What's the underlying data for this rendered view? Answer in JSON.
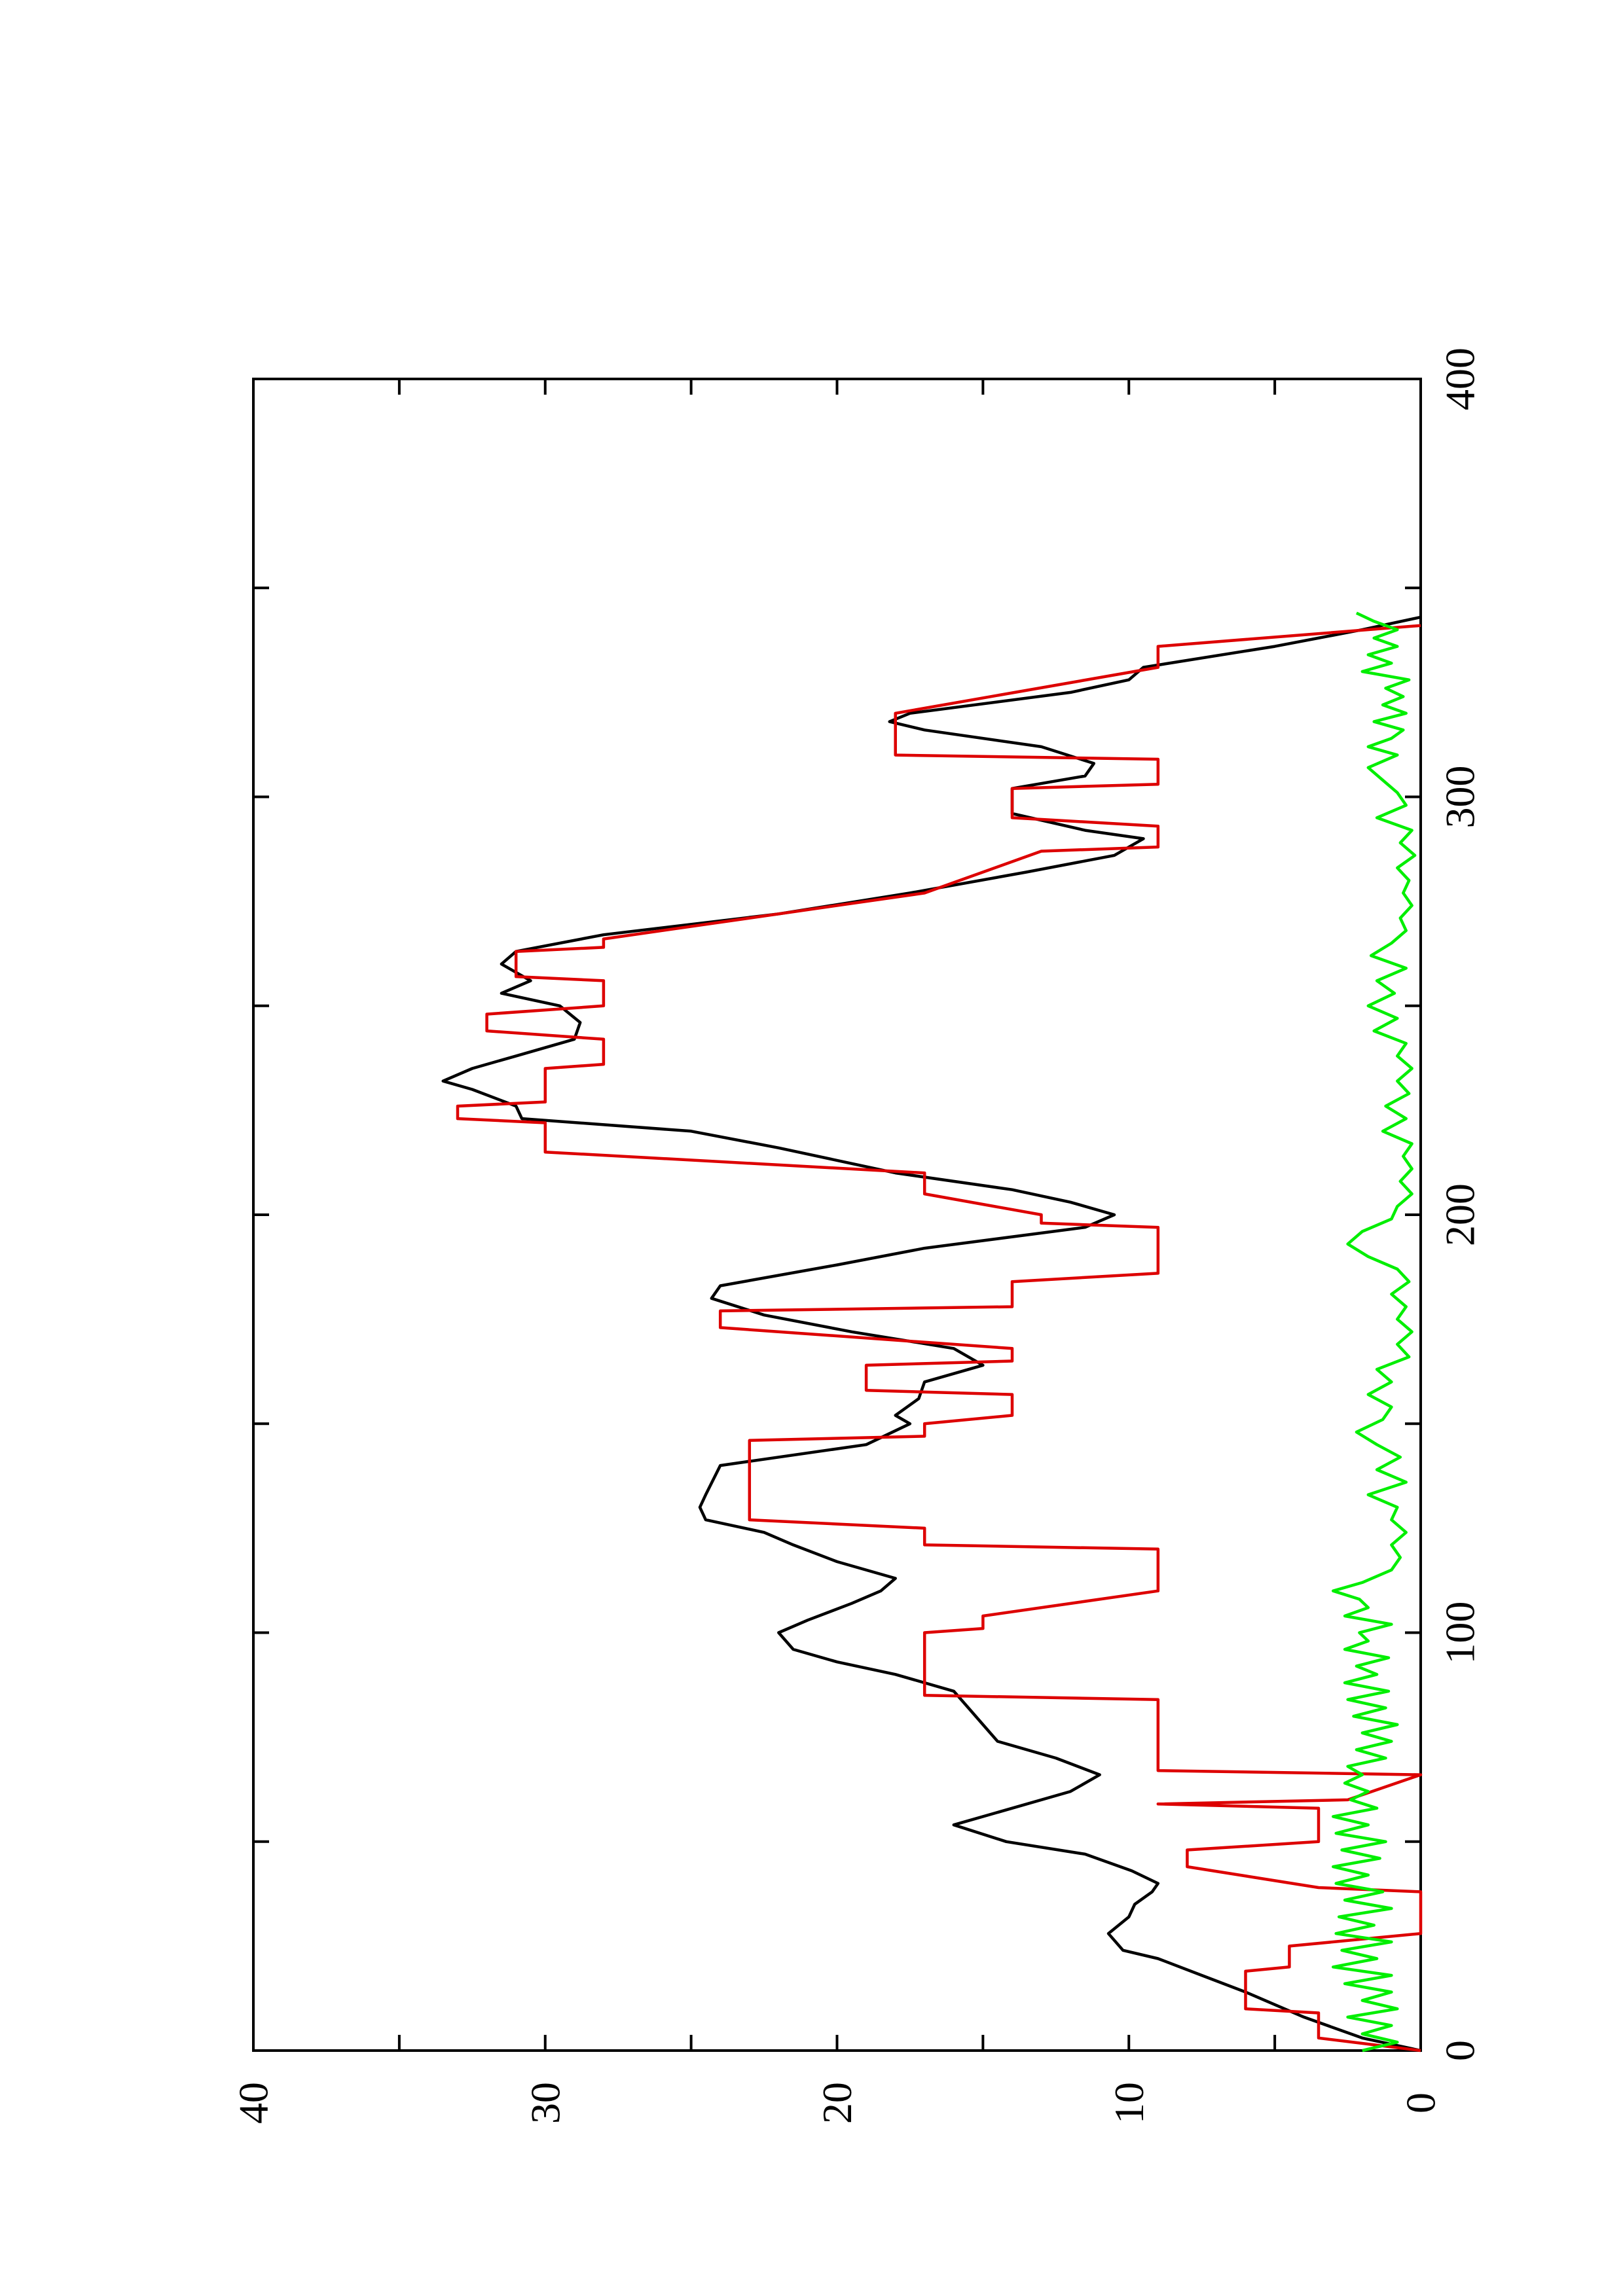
{
  "chart_data": {
    "type": "line",
    "orientation": "rotated-90-counterclockwise",
    "title": "",
    "xlabel": "",
    "ylabel": "",
    "xlim": [
      0,
      400
    ],
    "ylim": [
      0,
      40
    ],
    "x_ticks": [
      0,
      100,
      200,
      300,
      400
    ],
    "y_ticks": [
      0,
      10,
      20,
      30,
      40
    ],
    "x_tick_labels": [
      "0",
      "100",
      "200",
      "300",
      "400"
    ],
    "y_tick_labels": [
      "0",
      "10",
      "20",
      "30",
      "40"
    ],
    "x_minor_ticks": [
      50,
      150,
      250,
      350
    ],
    "y_minor_ticks": [
      5,
      15,
      25,
      35
    ],
    "grid": false,
    "legend": "none",
    "series": [
      {
        "color": "#000000",
        "points": [
          [
            0,
            0
          ],
          [
            3,
            2
          ],
          [
            8,
            4
          ],
          [
            11,
            5
          ],
          [
            14,
            6
          ],
          [
            18,
            7.5
          ],
          [
            22,
            9
          ],
          [
            24,
            10.2
          ],
          [
            28,
            10.7
          ],
          [
            32,
            10
          ],
          [
            35,
            9.8
          ],
          [
            38,
            9.2
          ],
          [
            40,
            9
          ],
          [
            43,
            9.9
          ],
          [
            47,
            11.5
          ],
          [
            50,
            14.2
          ],
          [
            54,
            16
          ],
          [
            58,
            14
          ],
          [
            62,
            12
          ],
          [
            66,
            11
          ],
          [
            70,
            12.5
          ],
          [
            74,
            14.5
          ],
          [
            78,
            15
          ],
          [
            82,
            15.5
          ],
          [
            86,
            16
          ],
          [
            90,
            18
          ],
          [
            93,
            20
          ],
          [
            96,
            21.5
          ],
          [
            100,
            22
          ],
          [
            103,
            21
          ],
          [
            107,
            19.5
          ],
          [
            110,
            18.5
          ],
          [
            113,
            18
          ],
          [
            117,
            20
          ],
          [
            121,
            21.5
          ],
          [
            124,
            22.5
          ],
          [
            127,
            24.5
          ],
          [
            130,
            24.7
          ],
          [
            133,
            24.5
          ],
          [
            140,
            24
          ],
          [
            145,
            19
          ],
          [
            150,
            17.5
          ],
          [
            152,
            18
          ],
          [
            156,
            17.2
          ],
          [
            160,
            17
          ],
          [
            164,
            15
          ],
          [
            168,
            16
          ],
          [
            172,
            19.5
          ],
          [
            176,
            22.5
          ],
          [
            180,
            24.3
          ],
          [
            183,
            24
          ],
          [
            188,
            20
          ],
          [
            192,
            17
          ],
          [
            197,
            11.5
          ],
          [
            200,
            10.5
          ],
          [
            203,
            12
          ],
          [
            206,
            14
          ],
          [
            210,
            18
          ],
          [
            216,
            22
          ],
          [
            220,
            25
          ],
          [
            223,
            30.8
          ],
          [
            226,
            31
          ],
          [
            230,
            32.5
          ],
          [
            232,
            33.5
          ],
          [
            235,
            32.5
          ],
          [
            238,
            31
          ],
          [
            242,
            29
          ],
          [
            246,
            28.8
          ],
          [
            250,
            29.5
          ],
          [
            253,
            31.5
          ],
          [
            256,
            30.5
          ],
          [
            260,
            31.5
          ],
          [
            263,
            31
          ],
          [
            267,
            28
          ],
          [
            272,
            22
          ],
          [
            277,
            17.5
          ],
          [
            282,
            13.5
          ],
          [
            286,
            10.5
          ],
          [
            290,
            9.5
          ],
          [
            292,
            11.5
          ],
          [
            296,
            14
          ],
          [
            302,
            14
          ],
          [
            305,
            11.5
          ],
          [
            308,
            11.2
          ],
          [
            312,
            13
          ],
          [
            316,
            17
          ],
          [
            318,
            18.2
          ],
          [
            320,
            17.5
          ],
          [
            325,
            12
          ],
          [
            328,
            10
          ],
          [
            331,
            9.5
          ],
          [
            336,
            5
          ],
          [
            340,
            2
          ],
          [
            343,
            0
          ]
        ]
      },
      {
        "color": "#dd0000",
        "points": [
          [
            0,
            0
          ],
          [
            3,
            3.5
          ],
          [
            9,
            3.5
          ],
          [
            10,
            6
          ],
          [
            19,
            6
          ],
          [
            20,
            4.5
          ],
          [
            25,
            4.5
          ],
          [
            28,
            0
          ],
          [
            38,
            0
          ],
          [
            39,
            3.5
          ],
          [
            44,
            8
          ],
          [
            48,
            8
          ],
          [
            50,
            3.5
          ],
          [
            58,
            3.5
          ],
          [
            59,
            9
          ],
          [
            60,
            2.5
          ],
          [
            66,
            0
          ],
          [
            67,
            9
          ],
          [
            71,
            9
          ],
          [
            84,
            9
          ],
          [
            85,
            17
          ],
          [
            88,
            17
          ],
          [
            100,
            17
          ],
          [
            101,
            15
          ],
          [
            104,
            15
          ],
          [
            110,
            9
          ],
          [
            120,
            9
          ],
          [
            121,
            17
          ],
          [
            125,
            17
          ],
          [
            127,
            23
          ],
          [
            146,
            23
          ],
          [
            147,
            17
          ],
          [
            150,
            17
          ],
          [
            152,
            14
          ],
          [
            157,
            14
          ],
          [
            158,
            19
          ],
          [
            164,
            19
          ],
          [
            165,
            14
          ],
          [
            168,
            14
          ],
          [
            173,
            24
          ],
          [
            177,
            24
          ],
          [
            178,
            14
          ],
          [
            184,
            14
          ],
          [
            186,
            9
          ],
          [
            197,
            9
          ],
          [
            198,
            13
          ],
          [
            200,
            13
          ],
          [
            205,
            17
          ],
          [
            210,
            17
          ],
          [
            215,
            30
          ],
          [
            222,
            30
          ],
          [
            223,
            33
          ],
          [
            226,
            33
          ],
          [
            227,
            30
          ],
          [
            235,
            30
          ],
          [
            236,
            28
          ],
          [
            242,
            28
          ],
          [
            244,
            32
          ],
          [
            248,
            32
          ],
          [
            250,
            28
          ],
          [
            256,
            28
          ],
          [
            257,
            31
          ],
          [
            263,
            31
          ],
          [
            264,
            28
          ],
          [
            266,
            28
          ],
          [
            277,
            17
          ],
          [
            287,
            13
          ],
          [
            288,
            9
          ],
          [
            293,
            9
          ],
          [
            295,
            14
          ],
          [
            302,
            14
          ],
          [
            303,
            9
          ],
          [
            309,
            9
          ],
          [
            310,
            18
          ],
          [
            320,
            18
          ],
          [
            331,
            9
          ],
          [
            336,
            9
          ],
          [
            341,
            0
          ]
        ]
      },
      {
        "color": "#00ee00",
        "points": [
          [
            0,
            2
          ],
          [
            2,
            0.8
          ],
          [
            4,
            2
          ],
          [
            6,
            1
          ],
          [
            8,
            2.5
          ],
          [
            10,
            0.8
          ],
          [
            12,
            2
          ],
          [
            14,
            1
          ],
          [
            16,
            2.6
          ],
          [
            18,
            1
          ],
          [
            20,
            3
          ],
          [
            22,
            1.5
          ],
          [
            24,
            2.7
          ],
          [
            26,
            1
          ],
          [
            28,
            2.9
          ],
          [
            30,
            1.6
          ],
          [
            32,
            2.8
          ],
          [
            34,
            1
          ],
          [
            36,
            2.6
          ],
          [
            38,
            1.3
          ],
          [
            40,
            2.9
          ],
          [
            42,
            1.8
          ],
          [
            44,
            3
          ],
          [
            46,
            1.4
          ],
          [
            48,
            2.7
          ],
          [
            50,
            1.2
          ],
          [
            52,
            2.9
          ],
          [
            54,
            1.8
          ],
          [
            56,
            3
          ],
          [
            58,
            1.5
          ],
          [
            60,
            2.4
          ],
          [
            62,
            1.8
          ],
          [
            64,
            2.6
          ],
          [
            66,
            2
          ],
          [
            68,
            2.5
          ],
          [
            70,
            1.2
          ],
          [
            72,
            2.2
          ],
          [
            74,
            1
          ],
          [
            76,
            2
          ],
          [
            78,
            0.8
          ],
          [
            80,
            2.3
          ],
          [
            82,
            1.2
          ],
          [
            84,
            2.5
          ],
          [
            86,
            1.1
          ],
          [
            88,
            2.6
          ],
          [
            90,
            1.5
          ],
          [
            92,
            2.2
          ],
          [
            94,
            1.1
          ],
          [
            96,
            2.6
          ],
          [
            98,
            1.8
          ],
          [
            100,
            2.1
          ],
          [
            102,
            1
          ],
          [
            104,
            2.6
          ],
          [
            106,
            1.8
          ],
          [
            108,
            2.1
          ],
          [
            110,
            3
          ],
          [
            112,
            2
          ],
          [
            115,
            1
          ],
          [
            118,
            0.7
          ],
          [
            121,
            1
          ],
          [
            124,
            0.5
          ],
          [
            127,
            1
          ],
          [
            130,
            0.8
          ],
          [
            133,
            1.8
          ],
          [
            136,
            0.5
          ],
          [
            139,
            1.5
          ],
          [
            142,
            0.7
          ],
          [
            145,
            1.5
          ],
          [
            148,
            2.2
          ],
          [
            151,
            1.3
          ],
          [
            154,
            1
          ],
          [
            157,
            1.8
          ],
          [
            160,
            1
          ],
          [
            163,
            1.5
          ],
          [
            166,
            0.4
          ],
          [
            169,
            0.8
          ],
          [
            172,
            0.3
          ],
          [
            175,
            0.8
          ],
          [
            178,
            0.5
          ],
          [
            181,
            1
          ],
          [
            184,
            0.4
          ],
          [
            187,
            0.8
          ],
          [
            190,
            1.8
          ],
          [
            193,
            2.5
          ],
          [
            196,
            2
          ],
          [
            199,
            1
          ],
          [
            202,
            0.8
          ],
          [
            205,
            0.3
          ],
          [
            208,
            0.7
          ],
          [
            211,
            0.3
          ],
          [
            214,
            0.6
          ],
          [
            217,
            0.3
          ],
          [
            220,
            1.3
          ],
          [
            223,
            0.5
          ],
          [
            226,
            1.2
          ],
          [
            229,
            0.4
          ],
          [
            232,
            0.8
          ],
          [
            235,
            0.3
          ],
          [
            238,
            0.8
          ],
          [
            241,
            0.5
          ],
          [
            244,
            1.6
          ],
          [
            247,
            0.8
          ],
          [
            250,
            1.8
          ],
          [
            253,
            0.9
          ],
          [
            256,
            1.5
          ],
          [
            259,
            0.5
          ],
          [
            262,
            1.7
          ],
          [
            265,
            1
          ],
          [
            268,
            0.5
          ],
          [
            271,
            0.7
          ],
          [
            274,
            0.3
          ],
          [
            277,
            0.6
          ],
          [
            280,
            0.4
          ],
          [
            283,
            0.8
          ],
          [
            286,
            0.2
          ],
          [
            289,
            0.7
          ],
          [
            292,
            0.3
          ],
          [
            295,
            1.5
          ],
          [
            298,
            0.5
          ],
          [
            301,
            0.8
          ],
          [
            304,
            1.3
          ],
          [
            307,
            1.8
          ],
          [
            310,
            0.8
          ],
          [
            312,
            1.8
          ],
          [
            314,
            1
          ],
          [
            316,
            0.6
          ],
          [
            318,
            1.6
          ],
          [
            320,
            0.5
          ],
          [
            322,
            1.3
          ],
          [
            324,
            0.6
          ],
          [
            326,
            1.2
          ],
          [
            328,
            0.4
          ],
          [
            330,
            2
          ],
          [
            332,
            1
          ],
          [
            334,
            1.8
          ],
          [
            336,
            0.8
          ],
          [
            338,
            1.6
          ],
          [
            340,
            0.8
          ],
          [
            342,
            1.6
          ],
          [
            344,
            2.2
          ]
        ]
      }
    ]
  }
}
